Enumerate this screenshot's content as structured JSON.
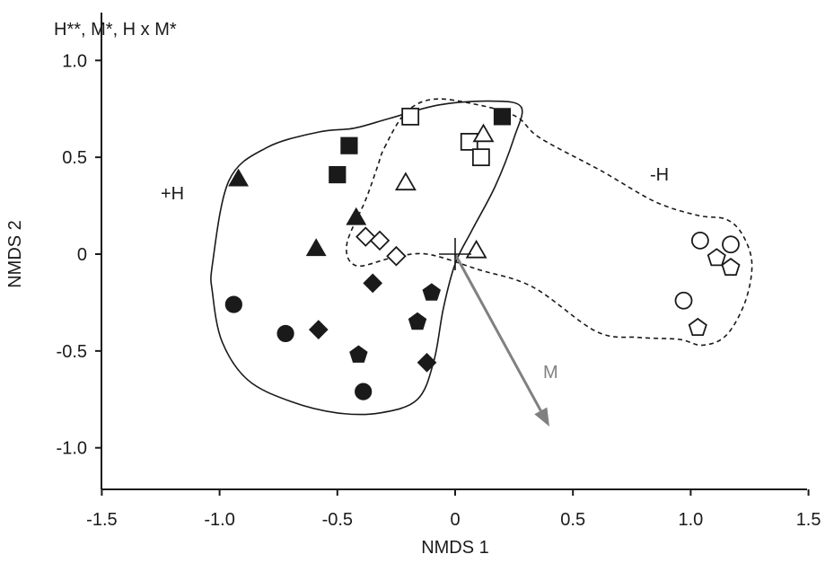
{
  "chart_data": {
    "type": "scatter",
    "title": "H**,  M*,  H x M*",
    "xlabel": "NMDS 1",
    "ylabel": "NMDS 2",
    "xlim": [
      -1.5,
      1.5
    ],
    "ylim": [
      -1.2,
      1.3
    ],
    "x_ticks": [
      -1.5,
      -1.0,
      -0.5,
      0,
      0.5,
      1.0,
      1.5
    ],
    "x_tick_labels": [
      "-1.5",
      "-1.0",
      "-0.5",
      "0",
      "0.5",
      "1.0",
      "1.5"
    ],
    "y_ticks": [
      -1.0,
      -0.5,
      0,
      0.5,
      1.0
    ],
    "y_tick_labels": [
      "-1.0",
      "-0.5",
      "0",
      "0.5",
      "1.0"
    ],
    "grid": false,
    "group_labels": {
      "plus_h": "+H",
      "minus_h": "-H"
    },
    "vector": {
      "label": "M",
      "x": 0.4,
      "y": -0.89,
      "color": "#808080"
    },
    "origin_marker": {
      "x": 0,
      "y": 0
    },
    "hulls": [
      {
        "group": "+H",
        "style": "solid",
        "points": [
          [
            -1.03,
            -0.05
          ],
          [
            -0.96,
            0.38
          ],
          [
            -0.8,
            0.55
          ],
          [
            -0.58,
            0.63
          ],
          [
            -0.43,
            0.65
          ],
          [
            -0.28,
            0.7
          ],
          [
            -0.07,
            0.77
          ],
          [
            0.15,
            0.79
          ],
          [
            0.28,
            0.76
          ],
          [
            0.25,
            0.6
          ],
          [
            0.17,
            0.35
          ],
          [
            0.07,
            0.12
          ],
          [
            0.0,
            -0.05
          ],
          [
            -0.05,
            -0.28
          ],
          [
            -0.09,
            -0.55
          ],
          [
            -0.16,
            -0.75
          ],
          [
            -0.32,
            -0.82
          ],
          [
            -0.5,
            -0.82
          ],
          [
            -0.7,
            -0.76
          ],
          [
            -0.88,
            -0.65
          ],
          [
            -0.99,
            -0.45
          ],
          [
            -1.03,
            -0.2
          ]
        ]
      },
      {
        "group": "-H",
        "style": "dashed",
        "points": [
          [
            -0.3,
            0.55
          ],
          [
            -0.21,
            0.73
          ],
          [
            -0.09,
            0.8
          ],
          [
            0.1,
            0.77
          ],
          [
            0.26,
            0.71
          ],
          [
            0.36,
            0.6
          ],
          [
            0.62,
            0.43
          ],
          [
            0.85,
            0.27
          ],
          [
            1.03,
            0.2
          ],
          [
            1.15,
            0.18
          ],
          [
            1.22,
            0.1
          ],
          [
            1.26,
            -0.05
          ],
          [
            1.23,
            -0.25
          ],
          [
            1.15,
            -0.42
          ],
          [
            1.05,
            -0.47
          ],
          [
            0.95,
            -0.44
          ],
          [
            0.78,
            -0.43
          ],
          [
            0.6,
            -0.4
          ],
          [
            0.33,
            -0.17
          ],
          [
            0.1,
            -0.08
          ],
          [
            -0.12,
            0.0
          ],
          [
            -0.27,
            -0.02
          ],
          [
            -0.42,
            -0.06
          ],
          [
            -0.46,
            0.05
          ],
          [
            -0.38,
            0.28
          ],
          [
            -0.33,
            0.45
          ]
        ]
      }
    ],
    "series": [
      {
        "marker": "square",
        "fill": "filled",
        "x": [
          -0.45,
          -0.5,
          0.2
        ],
        "y": [
          0.56,
          0.41,
          0.71
        ]
      },
      {
        "marker": "square",
        "fill": "open",
        "x": [
          -0.19,
          0.06,
          0.11
        ],
        "y": [
          0.71,
          0.58,
          0.5
        ]
      },
      {
        "marker": "triangle",
        "fill": "filled",
        "x": [
          -0.92,
          -0.42,
          -0.59
        ],
        "y": [
          0.39,
          0.19,
          0.03
        ]
      },
      {
        "marker": "triangle",
        "fill": "open",
        "x": [
          -0.21,
          0.12,
          0.09
        ],
        "y": [
          0.37,
          0.62,
          0.02
        ]
      },
      {
        "marker": "diamond",
        "fill": "filled",
        "x": [
          -0.35,
          -0.58,
          -0.12
        ],
        "y": [
          -0.15,
          -0.39,
          -0.56
        ]
      },
      {
        "marker": "diamond",
        "fill": "open",
        "x": [
          -0.38,
          -0.32,
          -0.25
        ],
        "y": [
          0.09,
          0.07,
          -0.01
        ]
      },
      {
        "marker": "circle",
        "fill": "filled",
        "x": [
          -0.94,
          -0.72,
          -0.39
        ],
        "y": [
          -0.26,
          -0.41,
          -0.71
        ]
      },
      {
        "marker": "circle",
        "fill": "open",
        "x": [
          1.04,
          1.17,
          0.97
        ],
        "y": [
          0.07,
          0.05,
          -0.24
        ]
      },
      {
        "marker": "pentagon",
        "fill": "filled",
        "x": [
          -0.41,
          -0.16,
          -0.1
        ],
        "y": [
          -0.52,
          -0.35,
          -0.2
        ]
      },
      {
        "marker": "pentagon",
        "fill": "open",
        "x": [
          1.11,
          1.17,
          1.03
        ],
        "y": [
          -0.02,
          -0.07,
          -0.38
        ]
      }
    ]
  }
}
